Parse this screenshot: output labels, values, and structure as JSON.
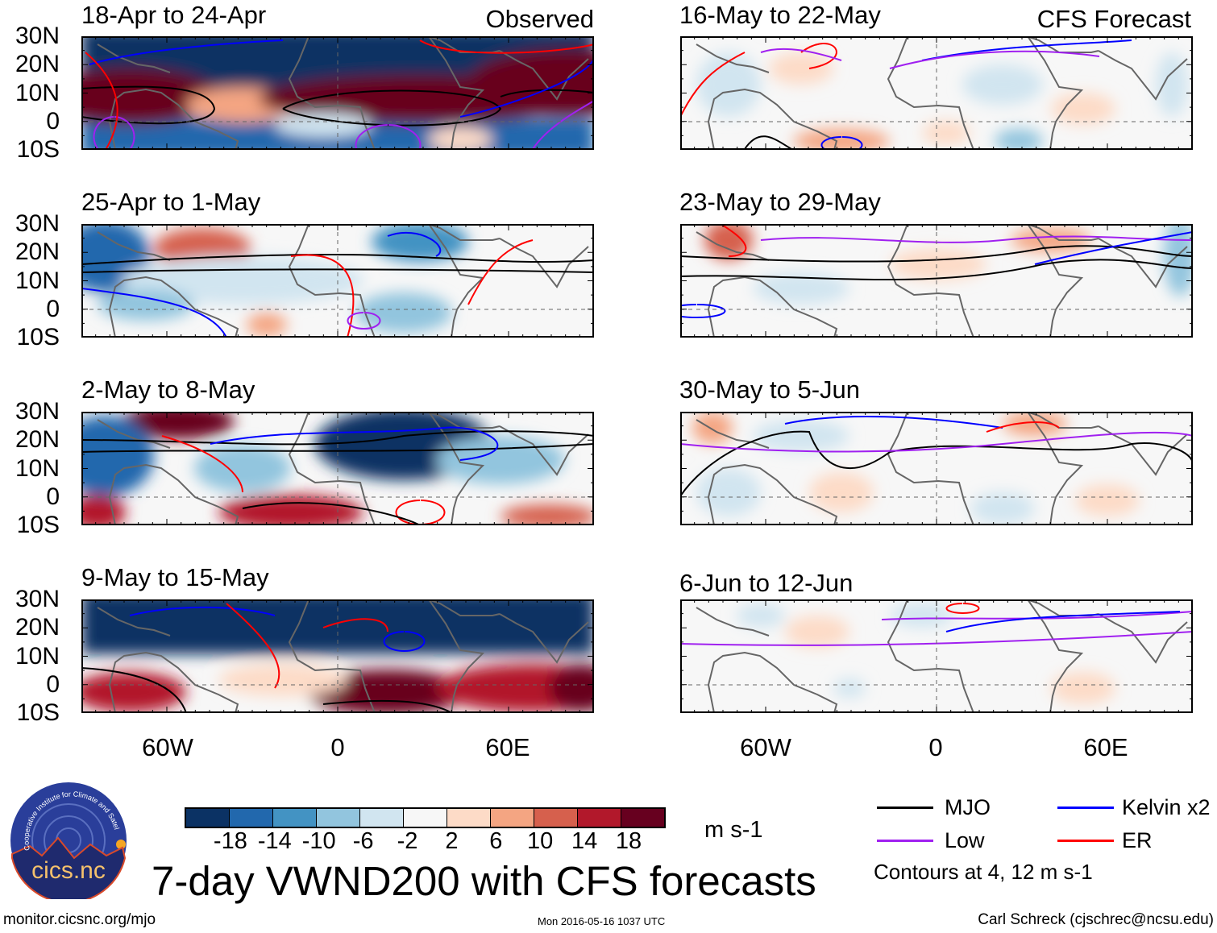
{
  "chart_data": {
    "type": "heatmap",
    "title": "7-day VWND200 with CFS forecasts",
    "variable": "200-hPa meridional wind anomaly",
    "units": "m s-1",
    "columns": [
      {
        "label": "Observed",
        "panels": [
          "18-Apr to 24-Apr",
          "25-Apr to 1-May",
          "2-May to 8-May",
          "9-May to 15-May"
        ]
      },
      {
        "label": "CFS Forecast",
        "panels": [
          "16-May to 22-May",
          "23-May to 29-May",
          "30-May to 5-Jun",
          "6-Jun to 12-Jun"
        ]
      }
    ],
    "lat_ticks": [
      "30N",
      "20N",
      "10N",
      "0",
      "10S"
    ],
    "lat_range": [
      -10,
      30
    ],
    "lon_ticks": [
      "60W",
      "0",
      "60E"
    ],
    "lon_range": [
      -90,
      90
    ],
    "colorbar": {
      "levels": [
        "-18",
        "-14",
        "-10",
        "-6",
        "-2",
        "2",
        "6",
        "10",
        "14",
        "18"
      ],
      "colors": [
        "#0b3264",
        "#2268ad",
        "#4393c3",
        "#92c5de",
        "#d1e5f0",
        "#f7f7f7",
        "#fddbc7",
        "#f4a582",
        "#d6604d",
        "#b2182b",
        "#67001f"
      ],
      "units": "m s-1"
    },
    "legend": [
      {
        "label": "MJO",
        "color": "#000000"
      },
      {
        "label": "Kelvin x2",
        "color": "#0000ff"
      },
      {
        "label": "Low",
        "color": "#a020f0"
      },
      {
        "label": "ER",
        "color": "#ff0000"
      }
    ],
    "contour_note": "Contours at 4, 12 m s-1"
  },
  "footer": {
    "url": "monitor.cicsnc.org/mjo",
    "timestamp": "Mon 2016-05-16 1037 UTC",
    "author": "Carl Schreck (cjschrec@ncsu.edu)"
  },
  "logo": {
    "text": "cics.nc",
    "arc_text": "Cooperative Institute for Climate and Satellites"
  }
}
